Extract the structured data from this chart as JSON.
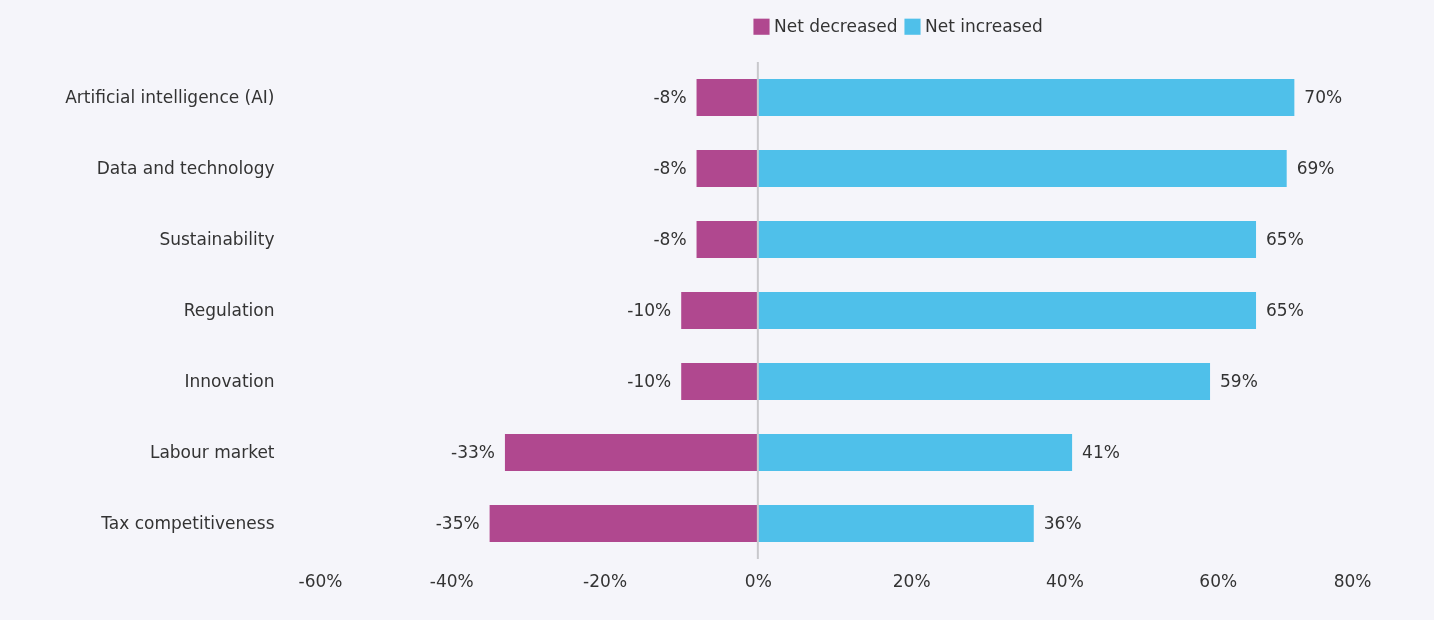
{
  "chart_data": {
    "type": "bar",
    "orientation": "horizontal",
    "categories": [
      "Artificial intelligence (AI)",
      "Data and technology",
      "Sustainability",
      "Regulation",
      "Innovation",
      "Labour market",
      "Tax competitiveness"
    ],
    "series": [
      {
        "name": "Net decreased",
        "color": "#b0488f",
        "values": [
          -8,
          -8,
          -8,
          -10,
          -10,
          -33,
          -35
        ],
        "value_labels": [
          "-8%",
          "-8%",
          "-8%",
          "-10%",
          "-10%",
          "-33%",
          "-35%"
        ]
      },
      {
        "name": "Net increased",
        "color": "#4fc0ea",
        "values": [
          70,
          69,
          65,
          65,
          59,
          41,
          36
        ],
        "value_labels": [
          "70%",
          "69%",
          "65%",
          "65%",
          "59%",
          "41%",
          "36%"
        ]
      }
    ],
    "xlim": [
      -60,
      80
    ],
    "xticks": [
      {
        "value": -60,
        "label": "-60%"
      },
      {
        "value": -40,
        "label": "-40%"
      },
      {
        "value": -20,
        "label": "-20%"
      },
      {
        "value": 0,
        "label": "0%"
      },
      {
        "value": 20,
        "label": "20%"
      },
      {
        "value": 40,
        "label": "40%"
      },
      {
        "value": 60,
        "label": "60%"
      },
      {
        "value": 80,
        "label": "80%"
      }
    ],
    "ref_lines": [
      {
        "axis": "x",
        "value": 0,
        "color": "#c8c8cc"
      }
    ],
    "grid": false,
    "legend": "top",
    "stacked": true
  }
}
